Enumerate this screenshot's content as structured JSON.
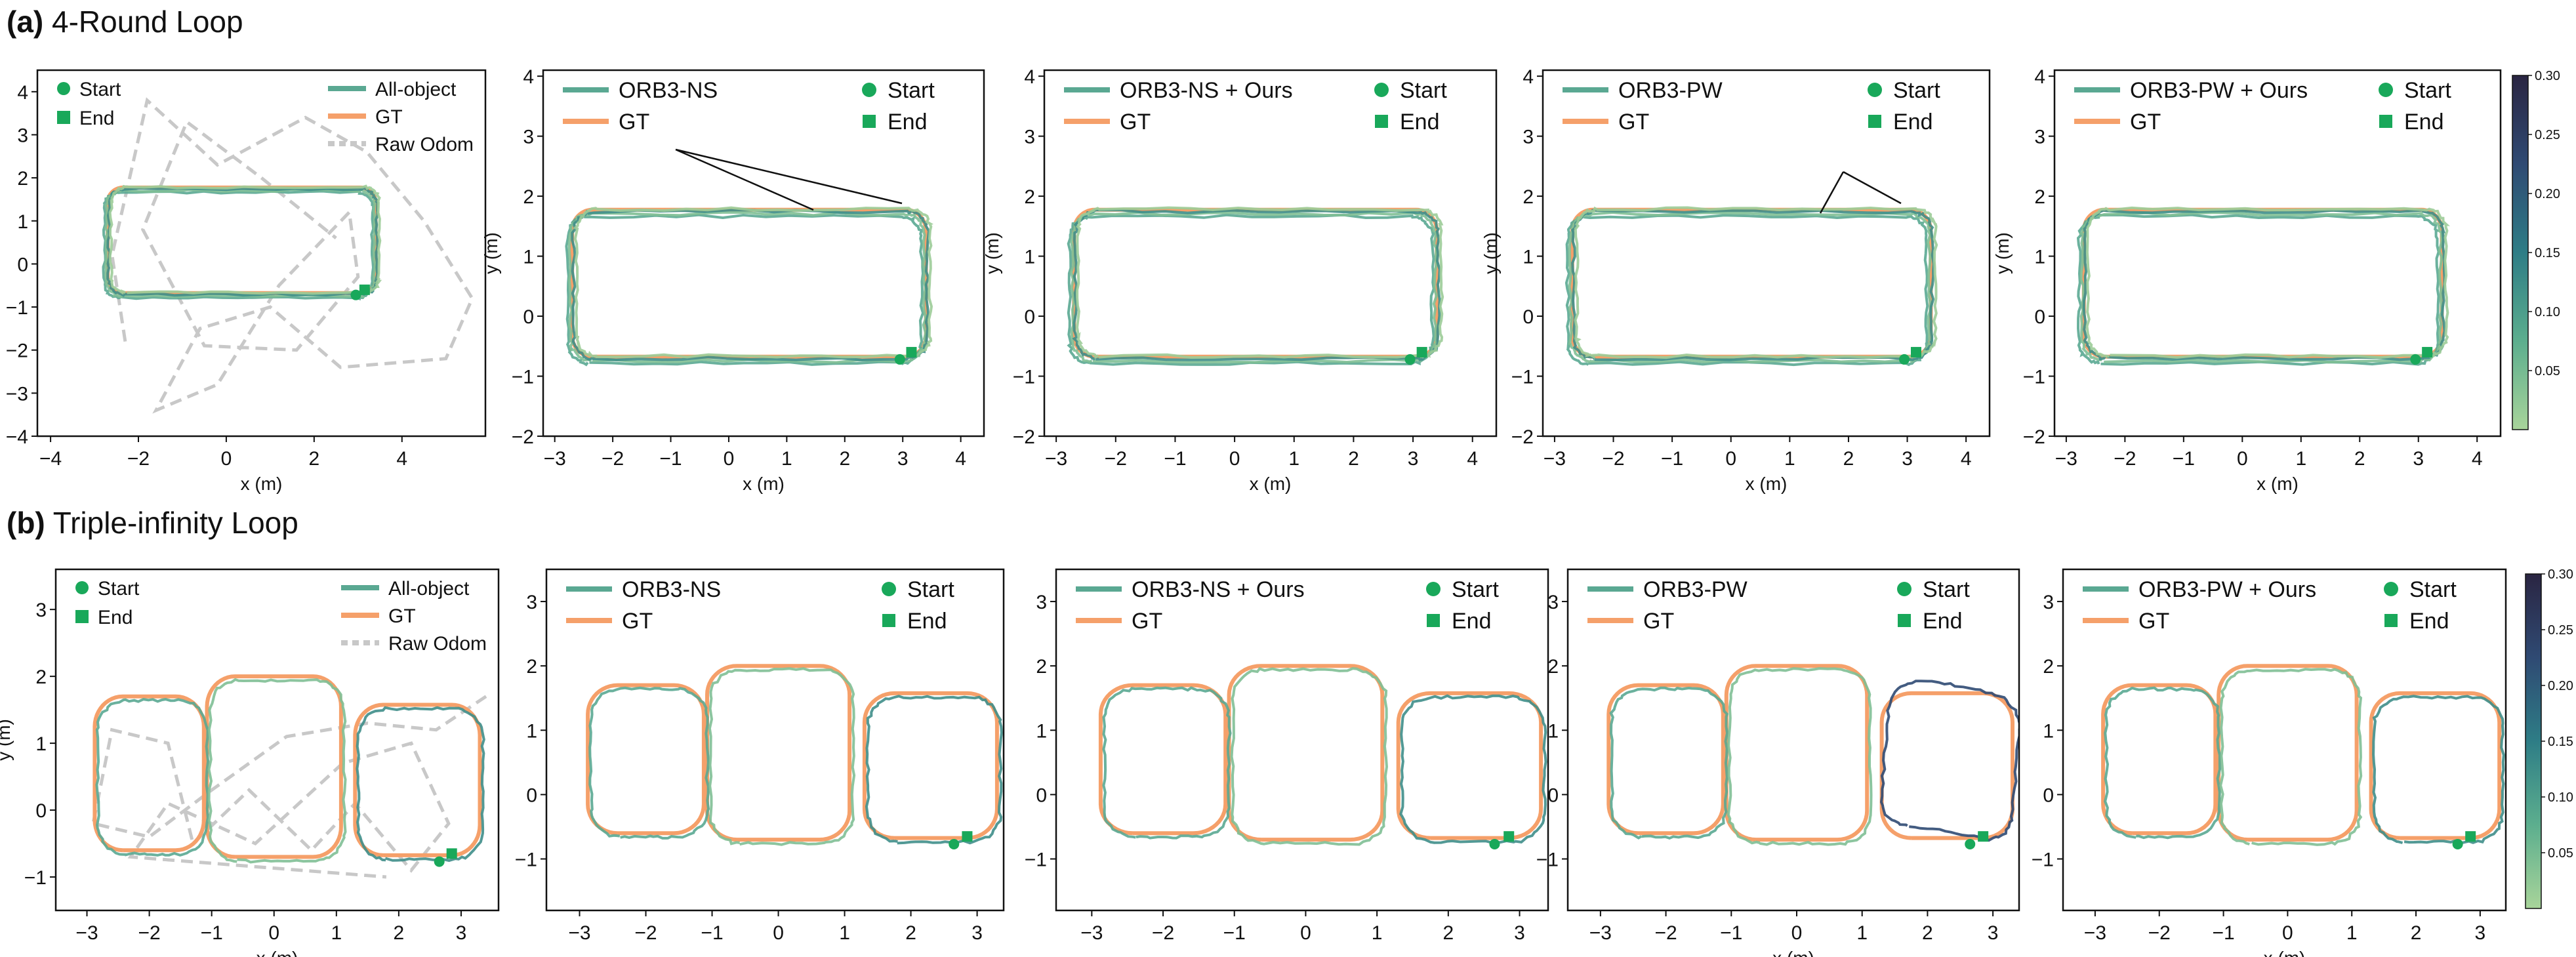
{
  "rows": [
    {
      "letter": "(a)",
      "title": "4-Round Loop"
    },
    {
      "letter": "(b)",
      "title": "Triple-infinity Loop"
    }
  ],
  "colorbar": {
    "ticks": [
      "0.30",
      "0.25",
      "0.20",
      "0.15",
      "0.10",
      "0.05"
    ],
    "range": [
      0,
      0.3
    ],
    "colors": [
      "#a8d49a",
      "#5cae8e",
      "#2e7d86",
      "#2f4a73",
      "#2a2542"
    ]
  },
  "colors": {
    "gt": "#f5a06a",
    "traj": "#5aa892",
    "odom": "#c8c8c8",
    "marker": "#19a85a"
  },
  "chart_data": [
    {
      "id": "a1",
      "type": "line",
      "xlabel": "x (m)",
      "ylabel": "y (m)",
      "xticks": [
        "-4",
        "-2",
        "0",
        "2",
        "4"
      ],
      "yticks": [
        "4",
        "3",
        "2",
        "1",
        "0",
        "-1",
        "-2",
        "-3",
        "-4"
      ],
      "xlim": [
        -4.3,
        5.9
      ],
      "ylim": [
        -4,
        4.5
      ],
      "legend_left": [
        "Start",
        "End"
      ],
      "legend_right": [
        "All-object",
        "GT",
        "Raw Odom"
      ]
    },
    {
      "id": "a2",
      "type": "line",
      "xlabel": "x (m)",
      "ylabel": "y (m)",
      "xticks": [
        "-3",
        "-2",
        "-1",
        "0",
        "1",
        "2",
        "3",
        "4"
      ],
      "yticks": [
        "4",
        "3",
        "2",
        "1",
        "0",
        "-1",
        "-2"
      ],
      "xlim": [
        -3.2,
        4.4
      ],
      "ylim": [
        -2,
        4.1
      ],
      "legend_left": [
        "ORB3-NS",
        "GT"
      ],
      "legend_right": [
        "Start",
        "End"
      ]
    },
    {
      "id": "a3",
      "type": "line",
      "xlabel": "x (m)",
      "ylabel": "y (m)",
      "xticks": [
        "-3",
        "-2",
        "-1",
        "0",
        "1",
        "2",
        "3",
        "4"
      ],
      "yticks": [
        "4",
        "3",
        "2",
        "1",
        "0",
        "-1",
        "-2"
      ],
      "xlim": [
        -3.2,
        4.4
      ],
      "ylim": [
        -2,
        4.1
      ],
      "legend_left": [
        "ORB3-NS + Ours",
        "GT"
      ],
      "legend_right": [
        "Start",
        "End"
      ]
    },
    {
      "id": "a4",
      "type": "line",
      "xlabel": "x (m)",
      "ylabel": "y (m)",
      "xticks": [
        "-3",
        "-2",
        "-1",
        "0",
        "1",
        "2",
        "3",
        "4"
      ],
      "yticks": [
        "4",
        "3",
        "2",
        "1",
        "0",
        "-1",
        "-2"
      ],
      "xlim": [
        -3.2,
        4.4
      ],
      "ylim": [
        -2,
        4.1
      ],
      "legend_left": [
        "ORB3-PW",
        "GT"
      ],
      "legend_right": [
        "Start",
        "End"
      ]
    },
    {
      "id": "a5",
      "type": "line",
      "xlabel": "x (m)",
      "ylabel": "y (m)",
      "xticks": [
        "-3",
        "-2",
        "-1",
        "0",
        "1",
        "2",
        "3",
        "4"
      ],
      "yticks": [
        "4",
        "3",
        "2",
        "1",
        "0",
        "-1",
        "-2"
      ],
      "xlim": [
        -3.2,
        4.4
      ],
      "ylim": [
        -2,
        4.1
      ],
      "legend_left": [
        "ORB3-PW + Ours",
        "GT"
      ],
      "legend_right": [
        "Start",
        "End"
      ]
    },
    {
      "id": "b1",
      "type": "line",
      "xlabel": "x (m)",
      "ylabel": "y (m)",
      "xticks": [
        "-3",
        "-2",
        "-1",
        "0",
        "1",
        "2",
        "3"
      ],
      "yticks": [
        "3",
        "2",
        "1",
        "0",
        "-1"
      ],
      "xlim": [
        -3.5,
        3.6
      ],
      "ylim": [
        -1.5,
        3.6
      ],
      "legend_left": [
        "Start",
        "End"
      ],
      "legend_right": [
        "All-object",
        "GT",
        "Raw Odom"
      ]
    },
    {
      "id": "b2",
      "type": "line",
      "xlabel": "",
      "ylabel": "",
      "xticks": [
        "-3",
        "-2",
        "-1",
        "0",
        "1",
        "2",
        "3"
      ],
      "yticks": [
        "3",
        "2",
        "1",
        "0",
        "-1"
      ],
      "xlim": [
        -3.5,
        3.4
      ],
      "ylim": [
        -1.8,
        3.5
      ],
      "legend_left": [
        "ORB3-NS",
        "GT"
      ],
      "legend_right": [
        "Start",
        "End"
      ]
    },
    {
      "id": "b3",
      "type": "line",
      "xlabel": "",
      "ylabel": "",
      "xticks": [
        "-3",
        "-2",
        "-1",
        "0",
        "1",
        "2",
        "3"
      ],
      "yticks": [
        "3",
        "2",
        "1",
        "0",
        "-1"
      ],
      "xlim": [
        -3.5,
        3.4
      ],
      "ylim": [
        -1.8,
        3.5
      ],
      "legend_left": [
        "ORB3-NS + Ours",
        "GT"
      ],
      "legend_right": [
        "Start",
        "End"
      ]
    },
    {
      "id": "b4",
      "type": "line",
      "xlabel": "x (m)",
      "ylabel": "",
      "xticks": [
        "-3",
        "-2",
        "-1",
        "0",
        "1",
        "2",
        "3"
      ],
      "yticks": [
        "3",
        "2",
        "1",
        "0",
        "-1"
      ],
      "xlim": [
        -3.5,
        3.4
      ],
      "ylim": [
        -1.8,
        3.5
      ],
      "legend_left": [
        "ORB3-PW",
        "GT"
      ],
      "legend_right": [
        "Start",
        "End"
      ]
    },
    {
      "id": "b5",
      "type": "line",
      "xlabel": "x (m)",
      "ylabel": "",
      "xticks": [
        "-3",
        "-2",
        "-1",
        "0",
        "1",
        "2",
        "3"
      ],
      "yticks": [
        "3",
        "2",
        "1",
        "0",
        "-1"
      ],
      "xlim": [
        -3.5,
        3.4
      ],
      "ylim": [
        -1.8,
        3.5
      ],
      "legend_left": [
        "ORB3-PW + Ours",
        "GT"
      ],
      "legend_right": [
        "Start",
        "End"
      ]
    }
  ]
}
